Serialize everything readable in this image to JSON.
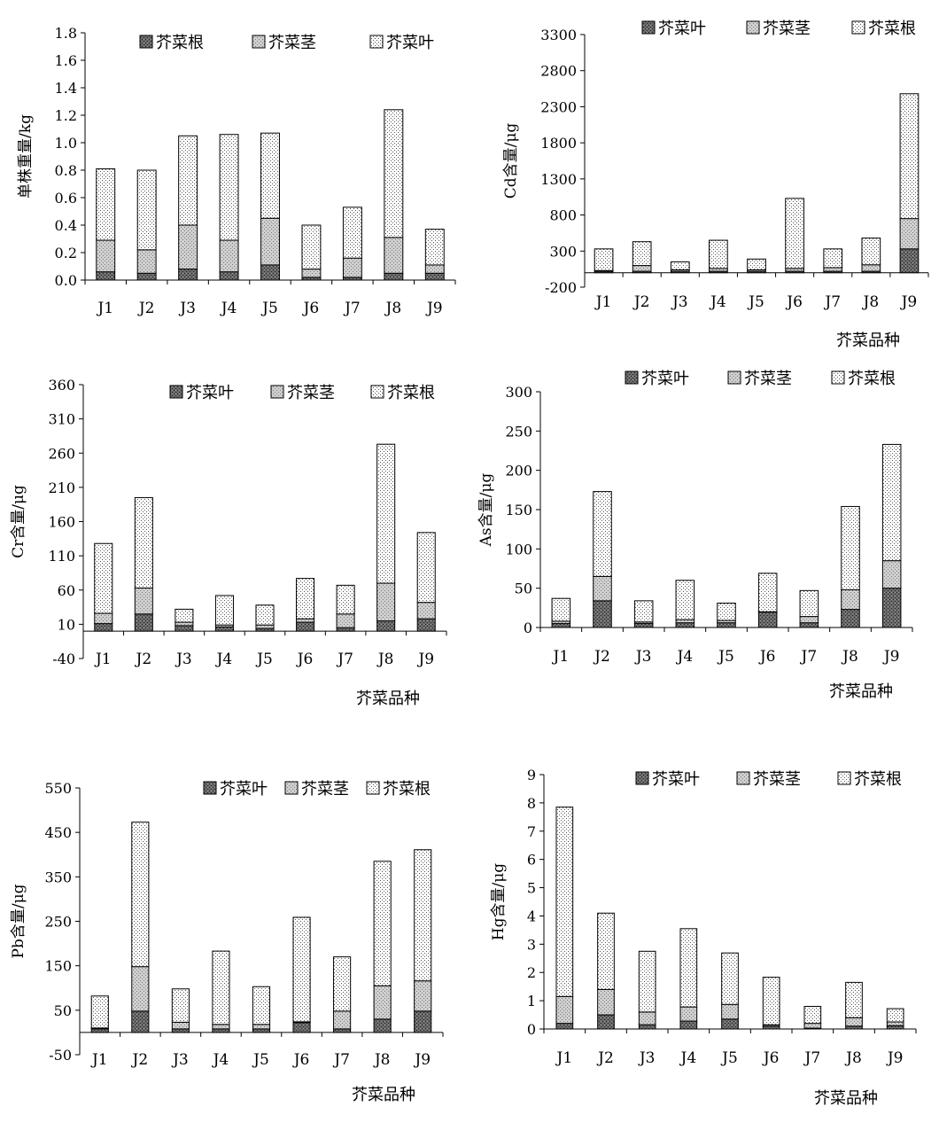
{
  "chart_data": [
    {
      "type": "bar",
      "stacked": true,
      "categories": [
        "J1",
        "J2",
        "J3",
        "J4",
        "J5",
        "J6",
        "J7",
        "J8",
        "J9"
      ],
      "ylabel": "单株重量/kg",
      "xlabel": "",
      "ylim": [
        0,
        1.8
      ],
      "yticks": [
        "0.0",
        "0.2",
        "0.4",
        "0.6",
        "0.8",
        "1.0",
        "1.2",
        "1.4",
        "1.6",
        "1.8"
      ],
      "legend_position": "top",
      "series": [
        {
          "name": "芥菜根",
          "pattern": "dark",
          "values": [
            0.06,
            0.05,
            0.08,
            0.06,
            0.11,
            0.02,
            0.02,
            0.05,
            0.05
          ]
        },
        {
          "name": "芥菜茎",
          "pattern": "grey",
          "values": [
            0.23,
            0.17,
            0.32,
            0.23,
            0.34,
            0.06,
            0.14,
            0.26,
            0.06
          ]
        },
        {
          "name": "芥菜叶",
          "pattern": "dots",
          "values": [
            0.52,
            0.58,
            0.65,
            0.77,
            0.62,
            0.32,
            0.37,
            0.93,
            0.26
          ]
        }
      ]
    },
    {
      "type": "bar",
      "stacked": true,
      "categories": [
        "J1",
        "J2",
        "J3",
        "J4",
        "J5",
        "J6",
        "J7",
        "J8",
        "J9"
      ],
      "ylabel": "Cd含量/μg",
      "xlabel": "芥菜品种",
      "ylim": [
        -200,
        3300
      ],
      "yticks": [
        "-200",
        "300",
        "800",
        "1300",
        "1800",
        "2300",
        "2800",
        "3300"
      ],
      "legend_position": "top",
      "series": [
        {
          "name": "芥菜叶",
          "pattern": "dark",
          "values": [
            20,
            20,
            20,
            20,
            20,
            20,
            20,
            20,
            330
          ]
        },
        {
          "name": "芥菜茎",
          "pattern": "grey",
          "values": [
            10,
            80,
            20,
            40,
            20,
            40,
            50,
            90,
            420
          ]
        },
        {
          "name": "芥菜根",
          "pattern": "dots",
          "values": [
            300,
            330,
            110,
            390,
            150,
            970,
            260,
            370,
            1730
          ]
        }
      ]
    },
    {
      "type": "bar",
      "stacked": true,
      "categories": [
        "J1",
        "J2",
        "J3",
        "J4",
        "J5",
        "J6",
        "J7",
        "J8",
        "J9"
      ],
      "ylabel": "Cr含量/μg",
      "xlabel": "芥菜品种",
      "ylim": [
        -40,
        360
      ],
      "yticks": [
        "-40",
        "10",
        "60",
        "110",
        "160",
        "210",
        "260",
        "310",
        "360"
      ],
      "legend_position": "top",
      "series": [
        {
          "name": "芥菜叶",
          "pattern": "dark",
          "values": [
            11,
            25,
            8,
            6,
            4,
            13,
            5,
            15,
            18
          ]
        },
        {
          "name": "芥菜茎",
          "pattern": "grey",
          "values": [
            15,
            38,
            5,
            3,
            5,
            5,
            20,
            55,
            24
          ]
        },
        {
          "name": "芥菜根",
          "pattern": "dots",
          "values": [
            102,
            132,
            19,
            43,
            29,
            59,
            42,
            203,
            102
          ]
        }
      ]
    },
    {
      "type": "bar",
      "stacked": true,
      "categories": [
        "J1",
        "J2",
        "J3",
        "J4",
        "J5",
        "J6",
        "J7",
        "J8",
        "J9"
      ],
      "ylabel": "As含量/μg",
      "xlabel": "芥菜品种",
      "ylim": [
        0,
        300
      ],
      "yticks": [
        "0",
        "50",
        "100",
        "150",
        "200",
        "250",
        "300"
      ],
      "legend_position": "top",
      "series": [
        {
          "name": "芥菜叶",
          "pattern": "dark",
          "values": [
            5,
            34,
            5,
            6,
            6,
            20,
            6,
            23,
            50
          ]
        },
        {
          "name": "芥菜茎",
          "pattern": "grey",
          "values": [
            3,
            31,
            2,
            4,
            3,
            0,
            8,
            25,
            35
          ]
        },
        {
          "name": "芥菜根",
          "pattern": "dots",
          "values": [
            29,
            108,
            27,
            50,
            22,
            49,
            33,
            106,
            148
          ]
        }
      ]
    },
    {
      "type": "bar",
      "stacked": true,
      "categories": [
        "J1",
        "J2",
        "J3",
        "J4",
        "J5",
        "J6",
        "J7",
        "J8",
        "J9"
      ],
      "ylabel": "Pb含量/μg",
      "xlabel": "芥菜品种",
      "ylim": [
        -50,
        550
      ],
      "yticks": [
        "-50",
        "50",
        "150",
        "250",
        "350",
        "450",
        "550"
      ],
      "legend_position": "top",
      "series": [
        {
          "name": "芥菜叶",
          "pattern": "dark",
          "values": [
            8,
            48,
            8,
            8,
            8,
            22,
            8,
            30,
            48
          ]
        },
        {
          "name": "芥菜茎",
          "pattern": "grey",
          "values": [
            2,
            100,
            15,
            10,
            10,
            2,
            40,
            75,
            68
          ]
        },
        {
          "name": "芥菜根",
          "pattern": "dots",
          "values": [
            72,
            325,
            75,
            165,
            85,
            235,
            122,
            280,
            295
          ]
        }
      ]
    },
    {
      "type": "bar",
      "stacked": true,
      "categories": [
        "J1",
        "J2",
        "J3",
        "J4",
        "J5",
        "J6",
        "J7",
        "J8",
        "J9"
      ],
      "ylabel": "Hg含量/μg",
      "xlabel": "芥菜品种",
      "ylim": [
        0,
        9
      ],
      "yticks": [
        "0",
        "1",
        "2",
        "3",
        "4",
        "5",
        "6",
        "7",
        "8",
        "9"
      ],
      "legend_position": "top",
      "series": [
        {
          "name": "芥菜叶",
          "pattern": "dark",
          "values": [
            0.2,
            0.5,
            0.15,
            0.28,
            0.35,
            0.1,
            0.03,
            0.1,
            0.12
          ]
        },
        {
          "name": "芥菜茎",
          "pattern": "grey",
          "values": [
            0.95,
            0.9,
            0.45,
            0.5,
            0.52,
            0.05,
            0.17,
            0.3,
            0.13
          ]
        },
        {
          "name": "芥菜根",
          "pattern": "dots",
          "values": [
            6.7,
            2.7,
            2.15,
            2.77,
            1.82,
            1.68,
            0.6,
            1.25,
            0.47
          ]
        }
      ]
    }
  ]
}
